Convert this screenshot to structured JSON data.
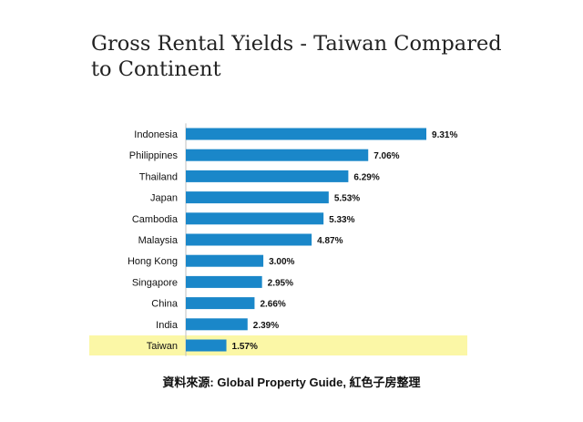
{
  "chart_data": {
    "type": "bar",
    "orientation": "horizontal",
    "title": "Gross Rental Yields - Taiwan Compared to Continent",
    "categories": [
      "Indonesia",
      "Philippines",
      "Thailand",
      "Japan",
      "Cambodia",
      "Malaysia",
      "Hong Kong",
      "Singapore",
      "China",
      "India",
      "Taiwan"
    ],
    "values": [
      9.31,
      7.06,
      6.29,
      5.53,
      5.33,
      4.87,
      3.0,
      2.95,
      2.66,
      2.39,
      1.57
    ],
    "value_labels": [
      "9.31%",
      "7.06%",
      "6.29%",
      "5.53%",
      "5.33%",
      "4.87%",
      "3.00%",
      "2.95%",
      "2.66%",
      "2.39%",
      "1.57%"
    ],
    "highlight_category": "Taiwan",
    "xlabel": "",
    "ylabel": "",
    "xlim": [
      0,
      11
    ],
    "grid": false,
    "legend": "none"
  },
  "colors": {
    "bar": "#1a87c9",
    "highlight_band": "#fbf7a6",
    "text": "#111111"
  },
  "source_text": "資料來源: Global Property Guide,  紅色子房整理"
}
